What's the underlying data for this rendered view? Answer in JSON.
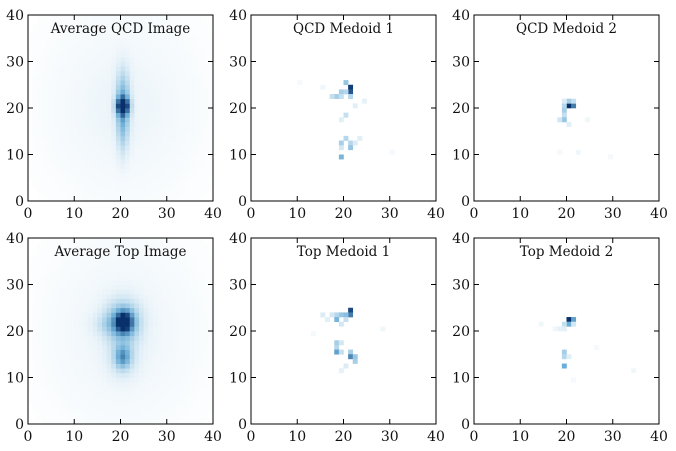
{
  "figure": {
    "colormap": {
      "low": "#ffffff",
      "mid": "#6baed6",
      "high": "#08306b"
    },
    "axis_color": "#000000"
  },
  "chart_data": [
    {
      "type": "heatmap",
      "title": "Average QCD Image",
      "xlabel": "",
      "ylabel": "",
      "xlim": [
        0,
        40
      ],
      "ylim": [
        0,
        40
      ],
      "xticks": [
        "0",
        "10",
        "20",
        "30",
        "40"
      ],
      "yticks": [
        "0",
        "10",
        "20",
        "30",
        "40"
      ],
      "grid": false,
      "background": {
        "cx": 20.5,
        "cy": 20.5,
        "sx": 13,
        "sy": 16,
        "weight": 0.06
      },
      "blobs": [
        {
          "x": 20.5,
          "y": 20.5,
          "sx": 0.9,
          "sy": 1.2,
          "w": 1.0
        },
        {
          "x": 20.5,
          "y": 21.0,
          "sx": 1.0,
          "sy": 4.5,
          "w": 0.45
        },
        {
          "x": 20.5,
          "y": 15.0,
          "sx": 0.8,
          "sy": 4.0,
          "w": 0.15
        }
      ],
      "pixels": []
    },
    {
      "type": "heatmap",
      "title": "QCD Medoid 1",
      "xlabel": "",
      "ylabel": "",
      "xlim": [
        0,
        40
      ],
      "ylim": [
        0,
        40
      ],
      "xticks": [
        "0",
        "10",
        "20",
        "30",
        "40"
      ],
      "yticks": [
        "0",
        "10",
        "20",
        "30",
        "40"
      ],
      "grid": false,
      "background": null,
      "blobs": [],
      "pixels": [
        [
          21,
          24,
          0.95
        ],
        [
          21,
          23,
          0.85
        ],
        [
          20,
          25,
          0.35
        ],
        [
          19,
          23,
          0.3
        ],
        [
          20,
          23,
          0.25
        ],
        [
          18,
          22,
          0.3
        ],
        [
          19,
          22,
          0.2
        ],
        [
          17,
          22,
          0.2
        ],
        [
          21,
          22,
          0.25
        ],
        [
          20,
          18,
          0.2
        ],
        [
          19,
          17,
          0.1
        ],
        [
          22,
          20,
          0.1
        ],
        [
          20,
          13,
          0.25
        ],
        [
          19,
          12,
          0.3
        ],
        [
          21,
          12,
          0.25
        ],
        [
          21,
          11,
          0.35
        ],
        [
          19,
          11,
          0.15
        ],
        [
          22,
          12,
          0.12
        ],
        [
          23,
          13,
          0.1
        ],
        [
          19,
          9,
          0.45
        ],
        [
          24,
          21,
          0.08
        ],
        [
          15,
          24,
          0.05
        ],
        [
          30,
          10,
          0.04
        ],
        [
          10,
          25,
          0.03
        ]
      ]
    },
    {
      "type": "heatmap",
      "title": "QCD Medoid 2",
      "xlabel": "",
      "ylabel": "",
      "xlim": [
        0,
        40
      ],
      "ylim": [
        0,
        40
      ],
      "xticks": [
        "0",
        "10",
        "20",
        "30",
        "40"
      ],
      "yticks": [
        "0",
        "10",
        "20",
        "30",
        "40"
      ],
      "grid": false,
      "background": null,
      "blobs": [],
      "pixels": [
        [
          20,
          20,
          1.0
        ],
        [
          21,
          20,
          0.7
        ],
        [
          19,
          20,
          0.25
        ],
        [
          20,
          21,
          0.3
        ],
        [
          21,
          21,
          0.2
        ],
        [
          19,
          21,
          0.12
        ],
        [
          19,
          19,
          0.3
        ],
        [
          19,
          18,
          0.2
        ],
        [
          19,
          17,
          0.35
        ],
        [
          18,
          17,
          0.15
        ],
        [
          20,
          16,
          0.1
        ],
        [
          22,
          10,
          0.05
        ],
        [
          18,
          10,
          0.04
        ],
        [
          24,
          17,
          0.05
        ],
        [
          29,
          9,
          0.04
        ]
      ]
    },
    {
      "type": "heatmap",
      "title": "Average Top Image",
      "xlabel": "",
      "ylabel": "",
      "xlim": [
        0,
        40
      ],
      "ylim": [
        0,
        40
      ],
      "xticks": [
        "0",
        "10",
        "20",
        "30",
        "40"
      ],
      "yticks": [
        "0",
        "10",
        "20",
        "30",
        "40"
      ],
      "grid": false,
      "background": {
        "cx": 20.5,
        "cy": 20.0,
        "sx": 13,
        "sy": 16,
        "weight": 0.06
      },
      "blobs": [
        {
          "x": 20.8,
          "y": 22.0,
          "sx": 1.2,
          "sy": 1.5,
          "w": 0.9
        },
        {
          "x": 20.5,
          "y": 22.0,
          "sx": 2.5,
          "sy": 3.0,
          "w": 0.45
        },
        {
          "x": 18.0,
          "y": 21.5,
          "sx": 2.5,
          "sy": 1.5,
          "w": 0.12
        },
        {
          "x": 20.5,
          "y": 14.5,
          "sx": 1.1,
          "sy": 1.6,
          "w": 0.45
        },
        {
          "x": 20.5,
          "y": 14.5,
          "sx": 2.2,
          "sy": 3.0,
          "w": 0.15
        }
      ],
      "pixels": []
    },
    {
      "type": "heatmap",
      "title": "Top Medoid 1",
      "xlabel": "",
      "ylabel": "",
      "xlim": [
        0,
        40
      ],
      "ylim": [
        0,
        40
      ],
      "xticks": [
        "0",
        "10",
        "20",
        "30",
        "40"
      ],
      "yticks": [
        "0",
        "10",
        "20",
        "30",
        "40"
      ],
      "grid": false,
      "background": null,
      "blobs": [],
      "pixels": [
        [
          21,
          24,
          0.9
        ],
        [
          21,
          23,
          0.7
        ],
        [
          20,
          23,
          0.4
        ],
        [
          19,
          23,
          0.35
        ],
        [
          18,
          23,
          0.25
        ],
        [
          17,
          23,
          0.15
        ],
        [
          15,
          23,
          0.12
        ],
        [
          16,
          22,
          0.1
        ],
        [
          18,
          22,
          0.45
        ],
        [
          20,
          22,
          0.2
        ],
        [
          19,
          21,
          0.15
        ],
        [
          18,
          17,
          0.3
        ],
        [
          18,
          16,
          0.25
        ],
        [
          19,
          17,
          0.15
        ],
        [
          18,
          15,
          0.55
        ],
        [
          19,
          15,
          0.2
        ],
        [
          21,
          15,
          0.3
        ],
        [
          21,
          14,
          0.65
        ],
        [
          22,
          14,
          0.35
        ],
        [
          22,
          13,
          0.3
        ],
        [
          20,
          12,
          0.12
        ],
        [
          19,
          11,
          0.08
        ],
        [
          28,
          20,
          0.05
        ],
        [
          13,
          19,
          0.04
        ]
      ]
    },
    {
      "type": "heatmap",
      "title": "Top Medoid 2",
      "xlabel": "",
      "ylabel": "",
      "xlim": [
        0,
        40
      ],
      "ylim": [
        0,
        40
      ],
      "xticks": [
        "0",
        "10",
        "20",
        "30",
        "40"
      ],
      "yticks": [
        "0",
        "10",
        "20",
        "30",
        "40"
      ],
      "grid": false,
      "background": null,
      "blobs": [],
      "pixels": [
        [
          20,
          22,
          1.0
        ],
        [
          21,
          22,
          0.55
        ],
        [
          20,
          21,
          0.5
        ],
        [
          19,
          21,
          0.2
        ],
        [
          21,
          21,
          0.15
        ],
        [
          19,
          20,
          0.1
        ],
        [
          18,
          20,
          0.08
        ],
        [
          19,
          15,
          0.3
        ],
        [
          19,
          14,
          0.25
        ],
        [
          20,
          14,
          0.1
        ],
        [
          19,
          12,
          0.5
        ],
        [
          17,
          20,
          0.05
        ],
        [
          14,
          21,
          0.05
        ],
        [
          34,
          11,
          0.05
        ],
        [
          26,
          16,
          0.04
        ],
        [
          21,
          9,
          0.04
        ]
      ]
    }
  ]
}
